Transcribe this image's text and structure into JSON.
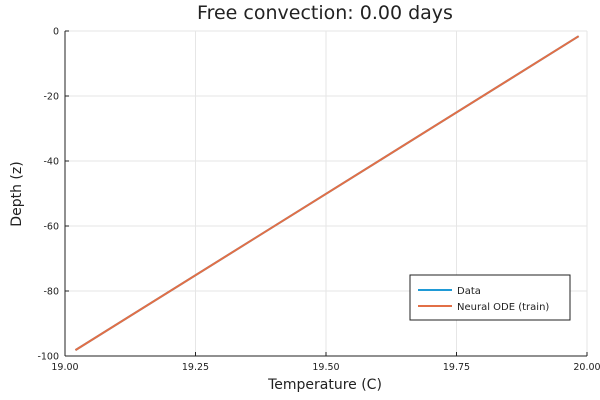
{
  "chart_data": {
    "type": "line",
    "title": "Free convection: 0.00 days",
    "xlabel": "Temperature (C)",
    "ylabel": "Depth (z)",
    "xlim": [
      19.0,
      20.0
    ],
    "ylim": [
      -100,
      0
    ],
    "xticks": [
      19.0,
      19.25,
      19.5,
      19.75,
      20.0
    ],
    "xtick_labels": [
      "19.00",
      "19.25",
      "19.50",
      "19.75",
      "20.00"
    ],
    "yticks": [
      0,
      -20,
      -40,
      -60,
      -80,
      -100
    ],
    "ytick_labels": [
      "0",
      "-20",
      "-40",
      "-60",
      "-80",
      "-100"
    ],
    "grid": true,
    "legend_position": "bottom-right",
    "series": [
      {
        "name": "Data",
        "color": "#1f9ad6",
        "x": [
          19.02,
          19.984
        ],
        "y": [
          -98.2,
          -1.6
        ]
      },
      {
        "name": "Neural ODE (train)",
        "color": "#e26f46",
        "x": [
          19.02,
          19.984
        ],
        "y": [
          -98.2,
          -1.6
        ]
      }
    ]
  }
}
